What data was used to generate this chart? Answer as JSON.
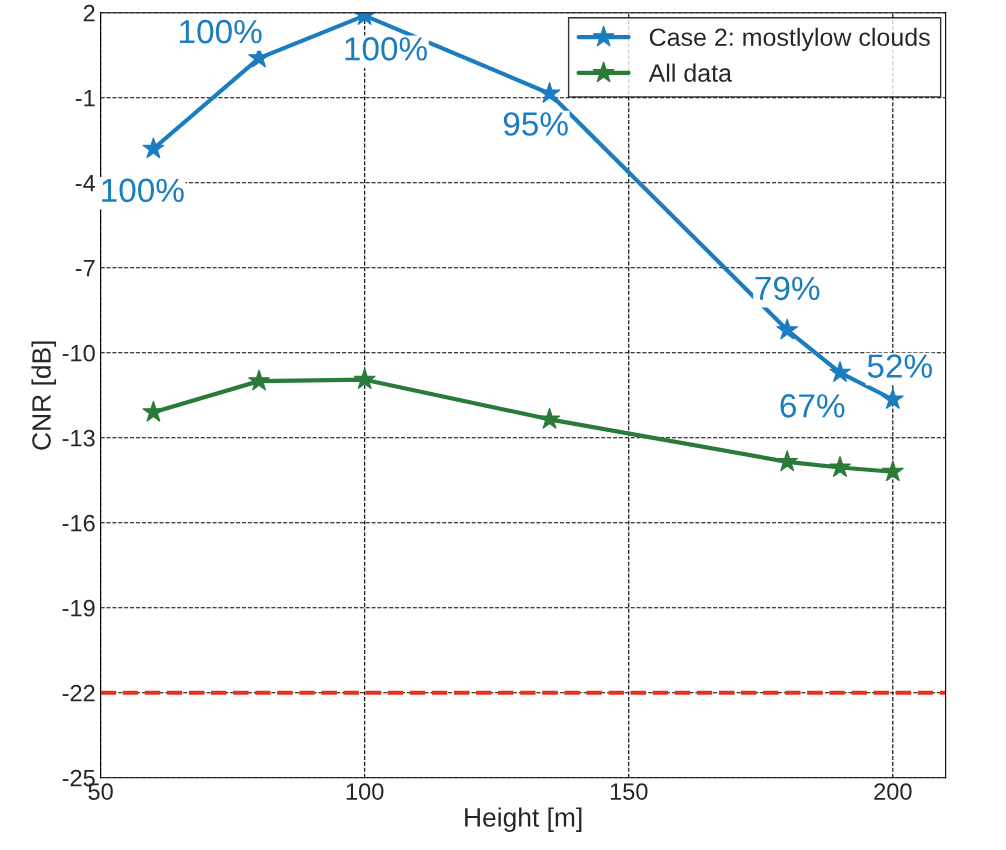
{
  "chart_data": {
    "type": "line",
    "xlabel": "Height [m]",
    "ylabel": "CNR [dB]",
    "x": [
      60,
      80,
      100,
      135,
      180,
      190,
      200
    ],
    "series": [
      {
        "name": "Case 2: mostlylow clouds",
        "color": "#1a7cc1",
        "values": [
          -2.8,
          0.4,
          1.9,
          -0.85,
          -9.2,
          -10.7,
          -11.65
        ]
      },
      {
        "name": "All data",
        "color": "#2a7a3a",
        "values": [
          -12.1,
          -11.0,
          -10.95,
          -12.35,
          -13.85,
          -14.05,
          -14.2
        ]
      }
    ],
    "xlim": [
      50,
      210
    ],
    "xticks": [
      50,
      100,
      150,
      200
    ],
    "ylim": [
      -25,
      2
    ],
    "yticks": [
      -25,
      -22,
      -19,
      -16,
      -13,
      -10,
      -7,
      -4,
      -1,
      2
    ],
    "ref_lines": [
      {
        "axis": "y",
        "value": -22,
        "color": "#e8301c",
        "line_style": "dashed"
      }
    ],
    "annotations": [
      {
        "text": "100%",
        "x": 60,
        "y": -2.8
      },
      {
        "text": "100%",
        "x": 80,
        "y": 0.4
      },
      {
        "text": "100%",
        "x": 100,
        "y": 1.9
      },
      {
        "text": "95%",
        "x": 135,
        "y": -0.85
      },
      {
        "text": "79%",
        "x": 180,
        "y": -9.2
      },
      {
        "text": "67%",
        "x": 190,
        "y": -10.7
      },
      {
        "text": "52%",
        "x": 200,
        "y": -11.65
      }
    ],
    "grid": true,
    "legend": "top right",
    "marker": "star",
    "line_style": "solid"
  }
}
